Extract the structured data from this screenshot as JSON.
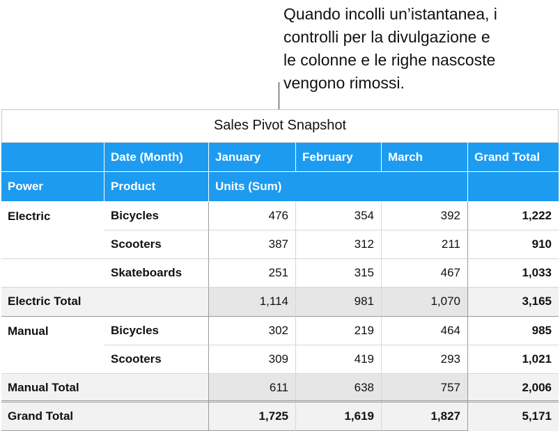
{
  "callout": {
    "lines": [
      "Quando incolli un’istantanea, i",
      "controlli per la divulgazione e",
      "le colonne e le righe nascoste",
      "vengono rimossi."
    ]
  },
  "table": {
    "title": "Sales Pivot Snapshot",
    "column_header": {
      "label": "Date (Month)",
      "months": [
        "January",
        "February",
        "March"
      ],
      "total": "Grand Total"
    },
    "row_header": {
      "power": "Power",
      "product": "Product",
      "measure": "Units (Sum)"
    },
    "rows": [
      {
        "power": "Electric",
        "product": "Bicycles",
        "values": [
          "476",
          "354",
          "392"
        ],
        "total": "1,222"
      },
      {
        "product": "Scooters",
        "values": [
          "387",
          "312",
          "211"
        ],
        "total": "910"
      },
      {
        "product": "Skateboards",
        "values": [
          "251",
          "315",
          "467"
        ],
        "total": "1,033"
      },
      {
        "label": "Electric Total",
        "values": [
          "1,114",
          "981",
          "1,070"
        ],
        "total": "3,165"
      },
      {
        "power": "Manual",
        "product": "Bicycles",
        "values": [
          "302",
          "219",
          "464"
        ],
        "total": "985"
      },
      {
        "product": "Scooters",
        "values": [
          "309",
          "419",
          "293"
        ],
        "total": "1,021"
      },
      {
        "label": "Manual Total",
        "values": [
          "611",
          "638",
          "757"
        ],
        "total": "2,006"
      },
      {
        "label": "Grand Total",
        "values": [
          "1,725",
          "1,619",
          "1,827"
        ],
        "total": "5,171"
      }
    ]
  }
}
